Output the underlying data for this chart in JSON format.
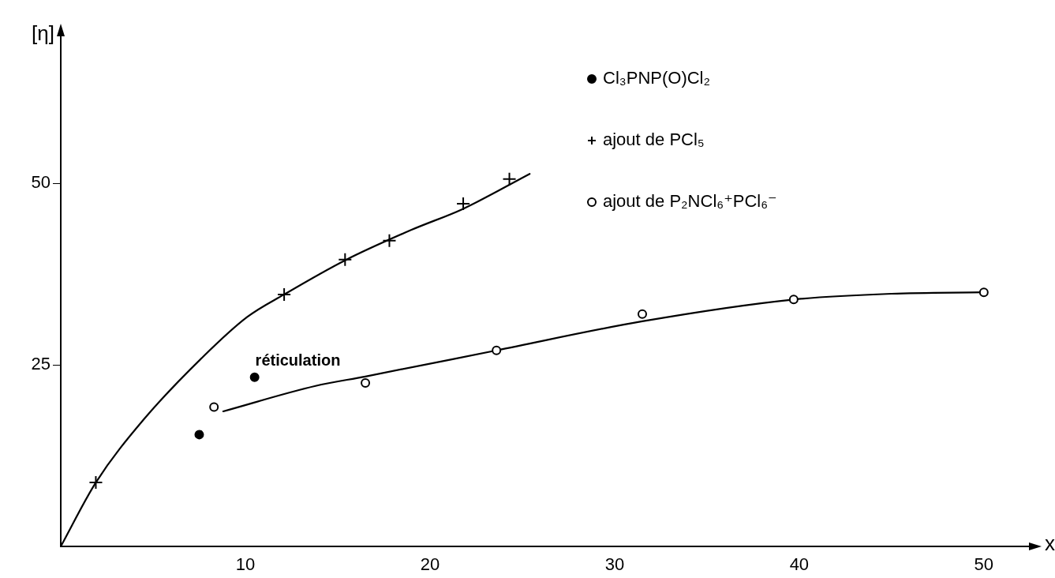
{
  "chart_data": {
    "type": "scatter",
    "ylabel": "[η]",
    "xlabel": "x",
    "xlim": [
      0,
      52.7
    ],
    "xticks": [
      10,
      20,
      30,
      40,
      50
    ],
    "ylim": [
      0,
      70.9
    ],
    "yticks": [
      25,
      50
    ],
    "grid": false,
    "legend": "top right",
    "annotations": [
      "réticulation"
    ],
    "series": [
      {
        "name": "Cl₃PNP(O)Cl₂",
        "marker": "dot",
        "color": "#000000",
        "x": [
          7.5,
          10.5
        ],
        "values": [
          15.4,
          23.3
        ]
      },
      {
        "name": "ajout de PCl₅",
        "marker": "cross",
        "color": "#000000",
        "x": [
          1.9,
          12.1,
          15.4,
          17.8,
          21.8,
          24.3
        ],
        "values": [
          8.8,
          34.7,
          39.5,
          42.1,
          47.2,
          50.6
        ]
      },
      {
        "name": "ajout de P₂NCl₆⁺PCl₆⁻",
        "marker": "circle",
        "color": "#000000",
        "x": [
          8.3,
          16.5,
          23.6,
          31.5,
          39.7,
          50.0
        ],
        "values": [
          19.2,
          22.5,
          27.0,
          32.0,
          34.0,
          35.0
        ]
      },
      {
        "type": "line",
        "marker": "none",
        "color": "#000000",
        "x": [
          0,
          1.9,
          4.5,
          7.7,
          10.1,
          12.1,
          15.4,
          19,
          21.8,
          25.4
        ],
        "values": [
          0,
          8.8,
          17.5,
          26.1,
          31.6,
          34.7,
          39.4,
          43.6,
          46.5,
          51.3
        ]
      },
      {
        "type": "line",
        "marker": "none",
        "color": "#000000",
        "x": [
          8.8,
          13.8,
          16.5,
          23.6,
          31.5,
          39.7,
          45,
          50.0
        ],
        "values": [
          18.6,
          22.1,
          23.4,
          27.0,
          31.0,
          34.0,
          34.8,
          35.0
        ]
      }
    ]
  }
}
